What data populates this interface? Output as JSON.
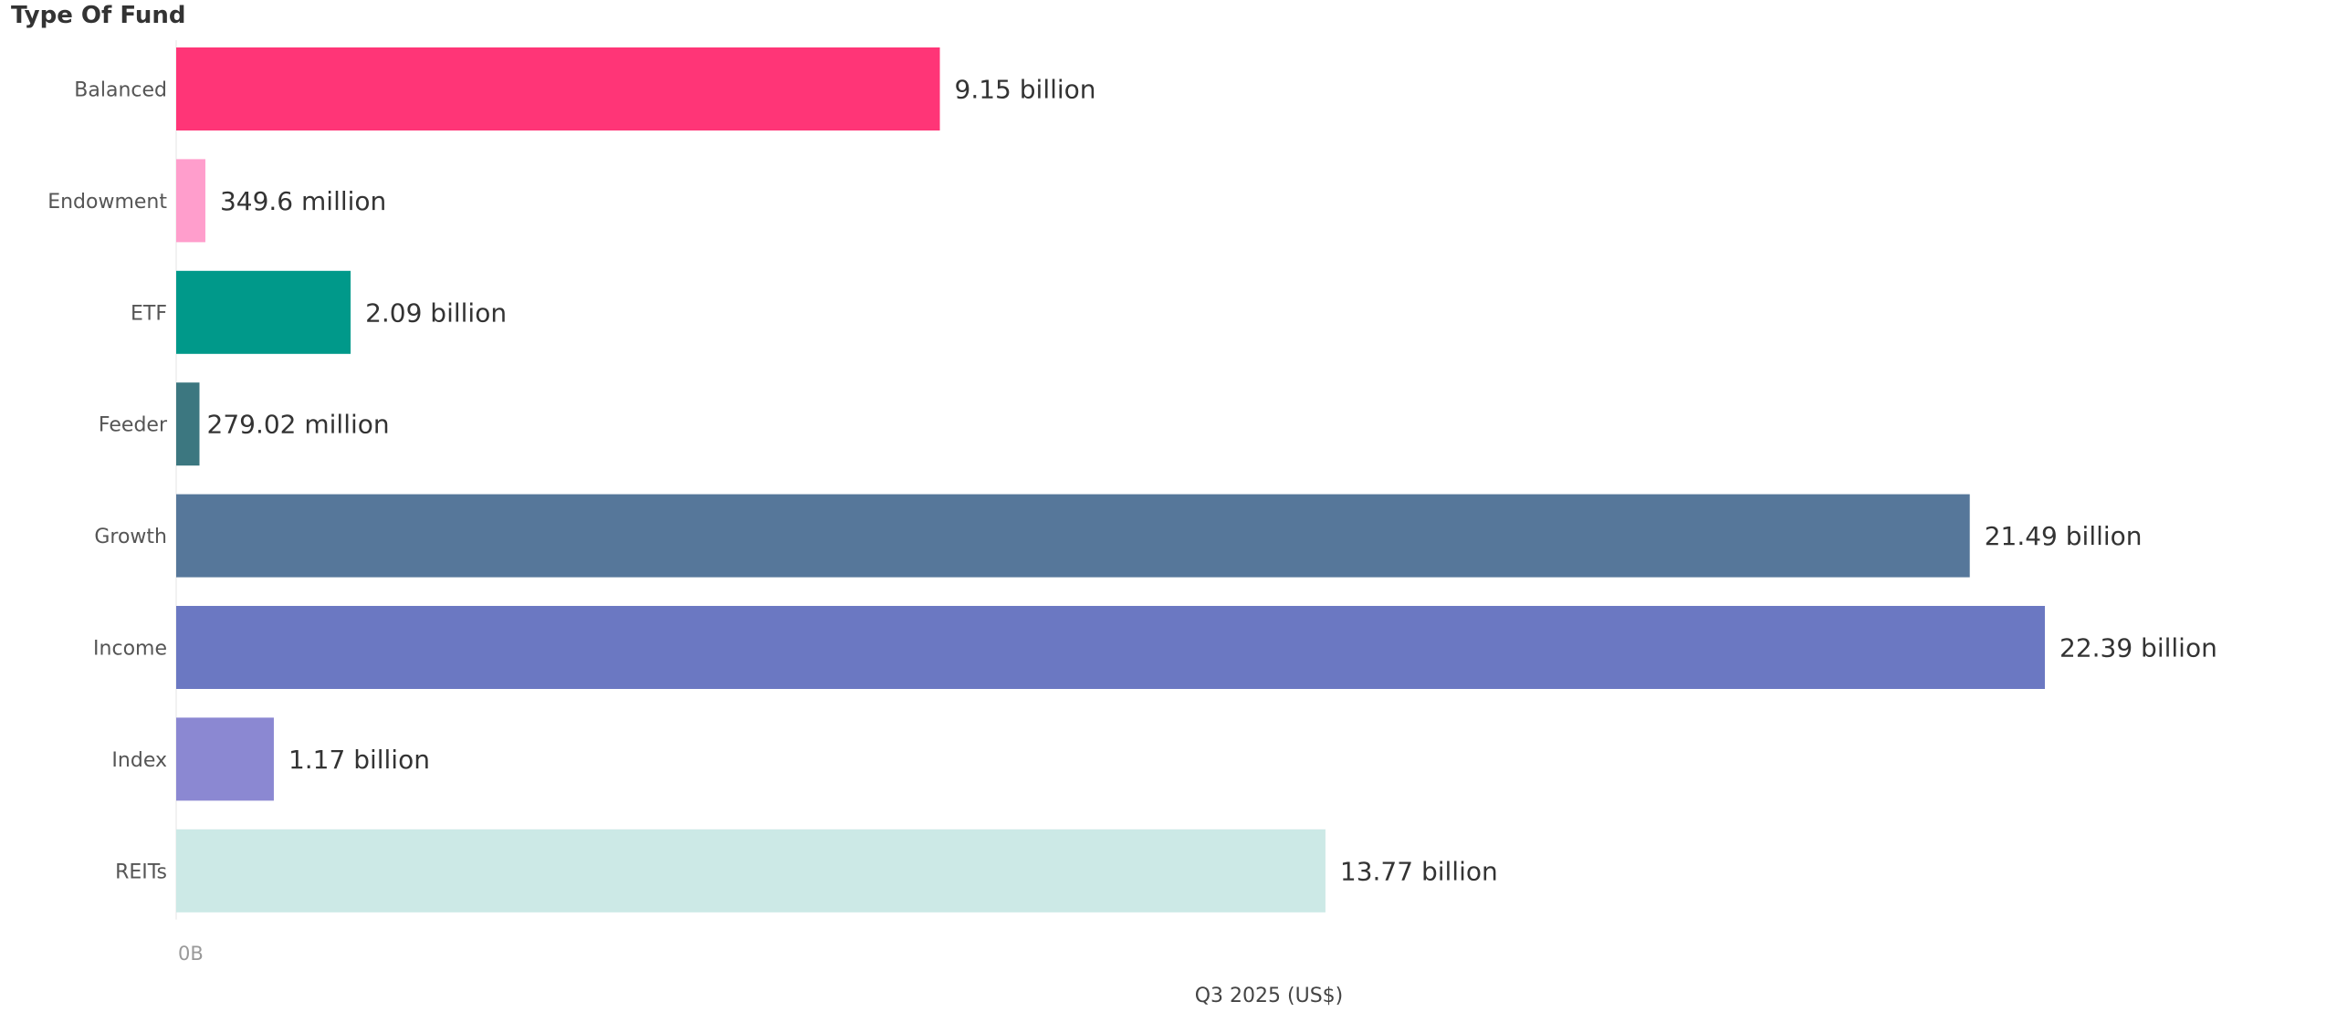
{
  "chart_data": {
    "type": "bar",
    "orientation": "horizontal",
    "category_header": "Type Of Fund",
    "categories": [
      "Balanced",
      "Endowment",
      "ETF",
      "Feeder",
      "Growth",
      "Income",
      "Index",
      "REITs"
    ],
    "values": [
      9.15,
      0.3496,
      2.09,
      0.27902,
      21.49,
      22.39,
      1.17,
      13.77
    ],
    "value_unit": "billion US$",
    "data_labels": [
      "9.15 billion",
      "349.6 million",
      "2.09 billion",
      "279.02 million",
      "21.49 billion",
      "22.39 billion",
      "1.17 billion",
      "13.77 billion"
    ],
    "colors": [
      "#ff3577",
      "#ff9ecc",
      "#00998a",
      "#3c7780",
      "#56779a",
      "#6b78c2",
      "#8b88d2",
      "#cce9e6"
    ],
    "xlabel": "Q3 2025 (US$)",
    "x_tick_labels": [
      "0B"
    ],
    "xlim": [
      0,
      22.39
    ],
    "grid": false,
    "legend": "none"
  }
}
